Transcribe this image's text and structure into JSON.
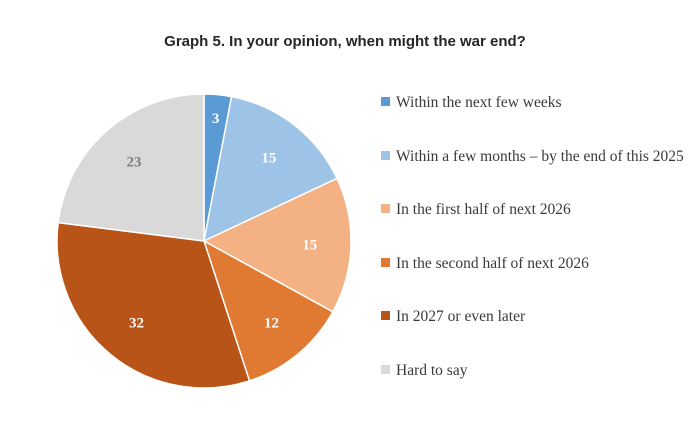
{
  "chart_data": {
    "type": "pie",
    "title": "Graph 5. In your opinion, when might the war end?",
    "slices": [
      {
        "label": "Within the next few weeks",
        "value": 3,
        "color": "#5b9bd5",
        "label_color": "#ffffff"
      },
      {
        "label": "Within a few months – by the end of this 2025",
        "value": 15,
        "color": "#9dc3e6",
        "label_color": "#ffffff"
      },
      {
        "label": "In the first half of next 2026",
        "value": 15,
        "color": "#f4b183",
        "label_color": "#ffffff"
      },
      {
        "label": "In the second half of next 2026",
        "value": 12,
        "color": "#e07a33",
        "label_color": "#ffffff"
      },
      {
        "label": "In 2027 or even later",
        "value": 32,
        "color": "#b85417",
        "label_color": "#ffffff"
      },
      {
        "label": "Hard to say",
        "value": 23,
        "color": "#d9d9d9",
        "label_color": "#7f7f7f"
      }
    ],
    "legend_position": "right"
  }
}
